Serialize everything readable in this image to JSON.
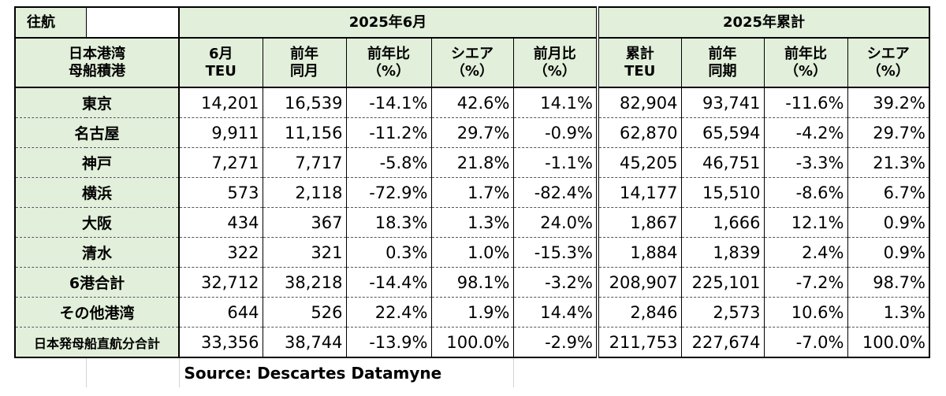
{
  "table": {
    "corner_label": "往航",
    "group_headers": {
      "june": "2025年6月",
      "cumulative": "2025年累計"
    },
    "port_header": [
      "日本港湾",
      "母船積港"
    ],
    "columns": [
      [
        "6月",
        "TEU"
      ],
      [
        "前年",
        "同月"
      ],
      [
        "前年比",
        "（%）"
      ],
      [
        "シエア",
        "（%）"
      ],
      [
        "前月比",
        "（%）"
      ],
      [
        "累計",
        "TEU"
      ],
      [
        "前年",
        "同期"
      ],
      [
        "前年比",
        "（%）"
      ],
      [
        "シエア",
        "（%）"
      ]
    ],
    "rows": [
      {
        "port": "東京",
        "values": [
          "14,201",
          "16,539",
          "-14.1%",
          "42.6%",
          "14.1%",
          "82,904",
          "93,741",
          "-11.6%",
          "39.2%"
        ]
      },
      {
        "port": "名古屋",
        "values": [
          "9,911",
          "11,156",
          "-11.2%",
          "29.7%",
          "-0.9%",
          "62,870",
          "65,594",
          "-4.2%",
          "29.7%"
        ]
      },
      {
        "port": "神戸",
        "values": [
          "7,271",
          "7,717",
          "-5.8%",
          "21.8%",
          "-1.1%",
          "45,205",
          "46,751",
          "-3.3%",
          "21.3%"
        ]
      },
      {
        "port": "横浜",
        "values": [
          "573",
          "2,118",
          "-72.9%",
          "1.7%",
          "-82.4%",
          "14,177",
          "15,510",
          "-8.6%",
          "6.7%"
        ]
      },
      {
        "port": "大阪",
        "values": [
          "434",
          "367",
          "18.3%",
          "1.3%",
          "24.0%",
          "1,867",
          "1,666",
          "12.1%",
          "0.9%"
        ]
      },
      {
        "port": "清水",
        "values": [
          "322",
          "321",
          "0.3%",
          "1.0%",
          "-15.3%",
          "1,884",
          "1,839",
          "2.4%",
          "0.9%"
        ]
      },
      {
        "port": "6港合計",
        "values": [
          "32,712",
          "38,218",
          "-14.4%",
          "98.1%",
          "-3.2%",
          "208,907",
          "225,101",
          "-7.2%",
          "98.7%"
        ]
      },
      {
        "port": "その他港湾",
        "values": [
          "644",
          "526",
          "22.4%",
          "1.9%",
          "14.4%",
          "2,846",
          "2,573",
          "10.6%",
          "1.3%"
        ]
      },
      {
        "port": "日本発母船直航分合計",
        "values": [
          "33,356",
          "38,744",
          "-13.9%",
          "100.0%",
          "-2.9%",
          "211,753",
          "227,674",
          "-7.0%",
          "100.0%"
        ]
      }
    ],
    "source": "Source:  Descartes Datamyne"
  }
}
